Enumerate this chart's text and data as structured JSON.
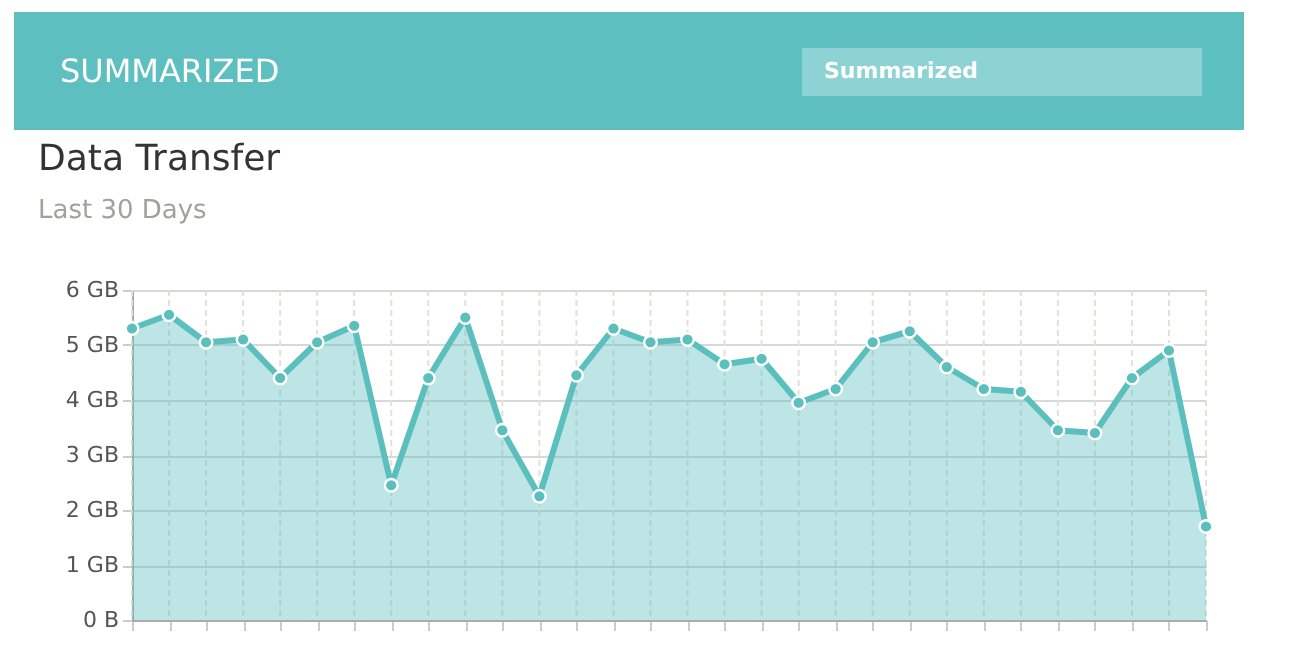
{
  "chart_data": {
    "type": "area",
    "title": "Data Transfer",
    "subtitle": "Last 30 Days",
    "annotations": [
      "SUMMARIZED",
      "Summarized"
    ],
    "categories": [
      null,
      null,
      null,
      null,
      null,
      null,
      null,
      null,
      null,
      null,
      null,
      null,
      null,
      null,
      null,
      null,
      null,
      null,
      null,
      null,
      null,
      null,
      null,
      null,
      null,
      null,
      null,
      null,
      null,
      null
    ],
    "series": [
      {
        "color": "#5bbfbd",
        "values": [
          5.3,
          5.55,
          5.05,
          5.1,
          4.4,
          5.05,
          5.35,
          2.45,
          4.4,
          5.5,
          3.45,
          2.25,
          4.45,
          5.3,
          5.05,
          5.1,
          4.65,
          4.75,
          3.95,
          4.2,
          5.05,
          5.25,
          4.6,
          4.2,
          4.15,
          3.45,
          3.4,
          4.4,
          4.9,
          1.7
        ]
      }
    ],
    "ylim": [
      0,
      6
    ],
    "yticks": [
      {
        "value": 0,
        "label": "0 B"
      },
      {
        "value": 1,
        "label": "1 GB"
      },
      {
        "value": 2,
        "label": "2 GB"
      },
      {
        "value": 3,
        "label": "3 GB"
      },
      {
        "value": 4,
        "label": "4 GB"
      },
      {
        "value": 5,
        "label": "5 GB"
      },
      {
        "value": 6,
        "label": "6 GB"
      }
    ],
    "grid": true,
    "marker": "circle",
    "line_style": "solid",
    "tick_labels": "y"
  }
}
